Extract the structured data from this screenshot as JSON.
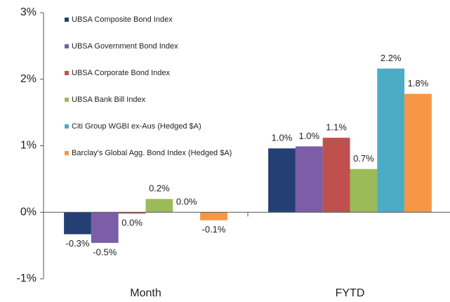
{
  "chart_data": {
    "type": "bar",
    "categories": [
      "Month",
      "FYTD"
    ],
    "series": [
      {
        "name": "UBSA Composite Bond Index",
        "color": "#243f73",
        "values": [
          -0.33,
          0.96
        ],
        "value_labels": [
          "-0.3%",
          "1.0%"
        ]
      },
      {
        "name": "UBSA Government Bond Index",
        "color": "#7b5ea7",
        "values": [
          -0.46,
          0.99
        ],
        "value_labels": [
          "-0.5%",
          "1.0%"
        ]
      },
      {
        "name": "UBSA Corporate Bond Index",
        "color": "#c0504d",
        "values": [
          -0.02,
          1.12
        ],
        "value_labels": [
          "0.0%",
          "1.1%"
        ]
      },
      {
        "name": "UBSA Bank Bill Index",
        "color": "#9bbb59",
        "values": [
          0.2,
          0.65
        ],
        "value_labels": [
          "0.2%",
          "0.7%"
        ]
      },
      {
        "name": "Citi Group WGBI ex-Aus (Hedged $A)",
        "color": "#4bacc6",
        "values": [
          0.0,
          2.16
        ],
        "value_labels": [
          "0.0%",
          "2.2%"
        ]
      },
      {
        "name": "Barclay's Global Agg. Bond Index (Hedged $A)",
        "color": "#f79646",
        "values": [
          -0.12,
          1.78
        ],
        "value_labels": [
          "-0.1%",
          "1.8%"
        ]
      }
    ],
    "ylim": [
      -1,
      3
    ],
    "yticks": [
      {
        "value": -1,
        "label": "-1%"
      },
      {
        "value": 0,
        "label": "0%"
      },
      {
        "value": 1,
        "label": "1%"
      },
      {
        "value": 2,
        "label": "2%"
      },
      {
        "value": 3,
        "label": "3%"
      }
    ],
    "legend": "upper left"
  }
}
